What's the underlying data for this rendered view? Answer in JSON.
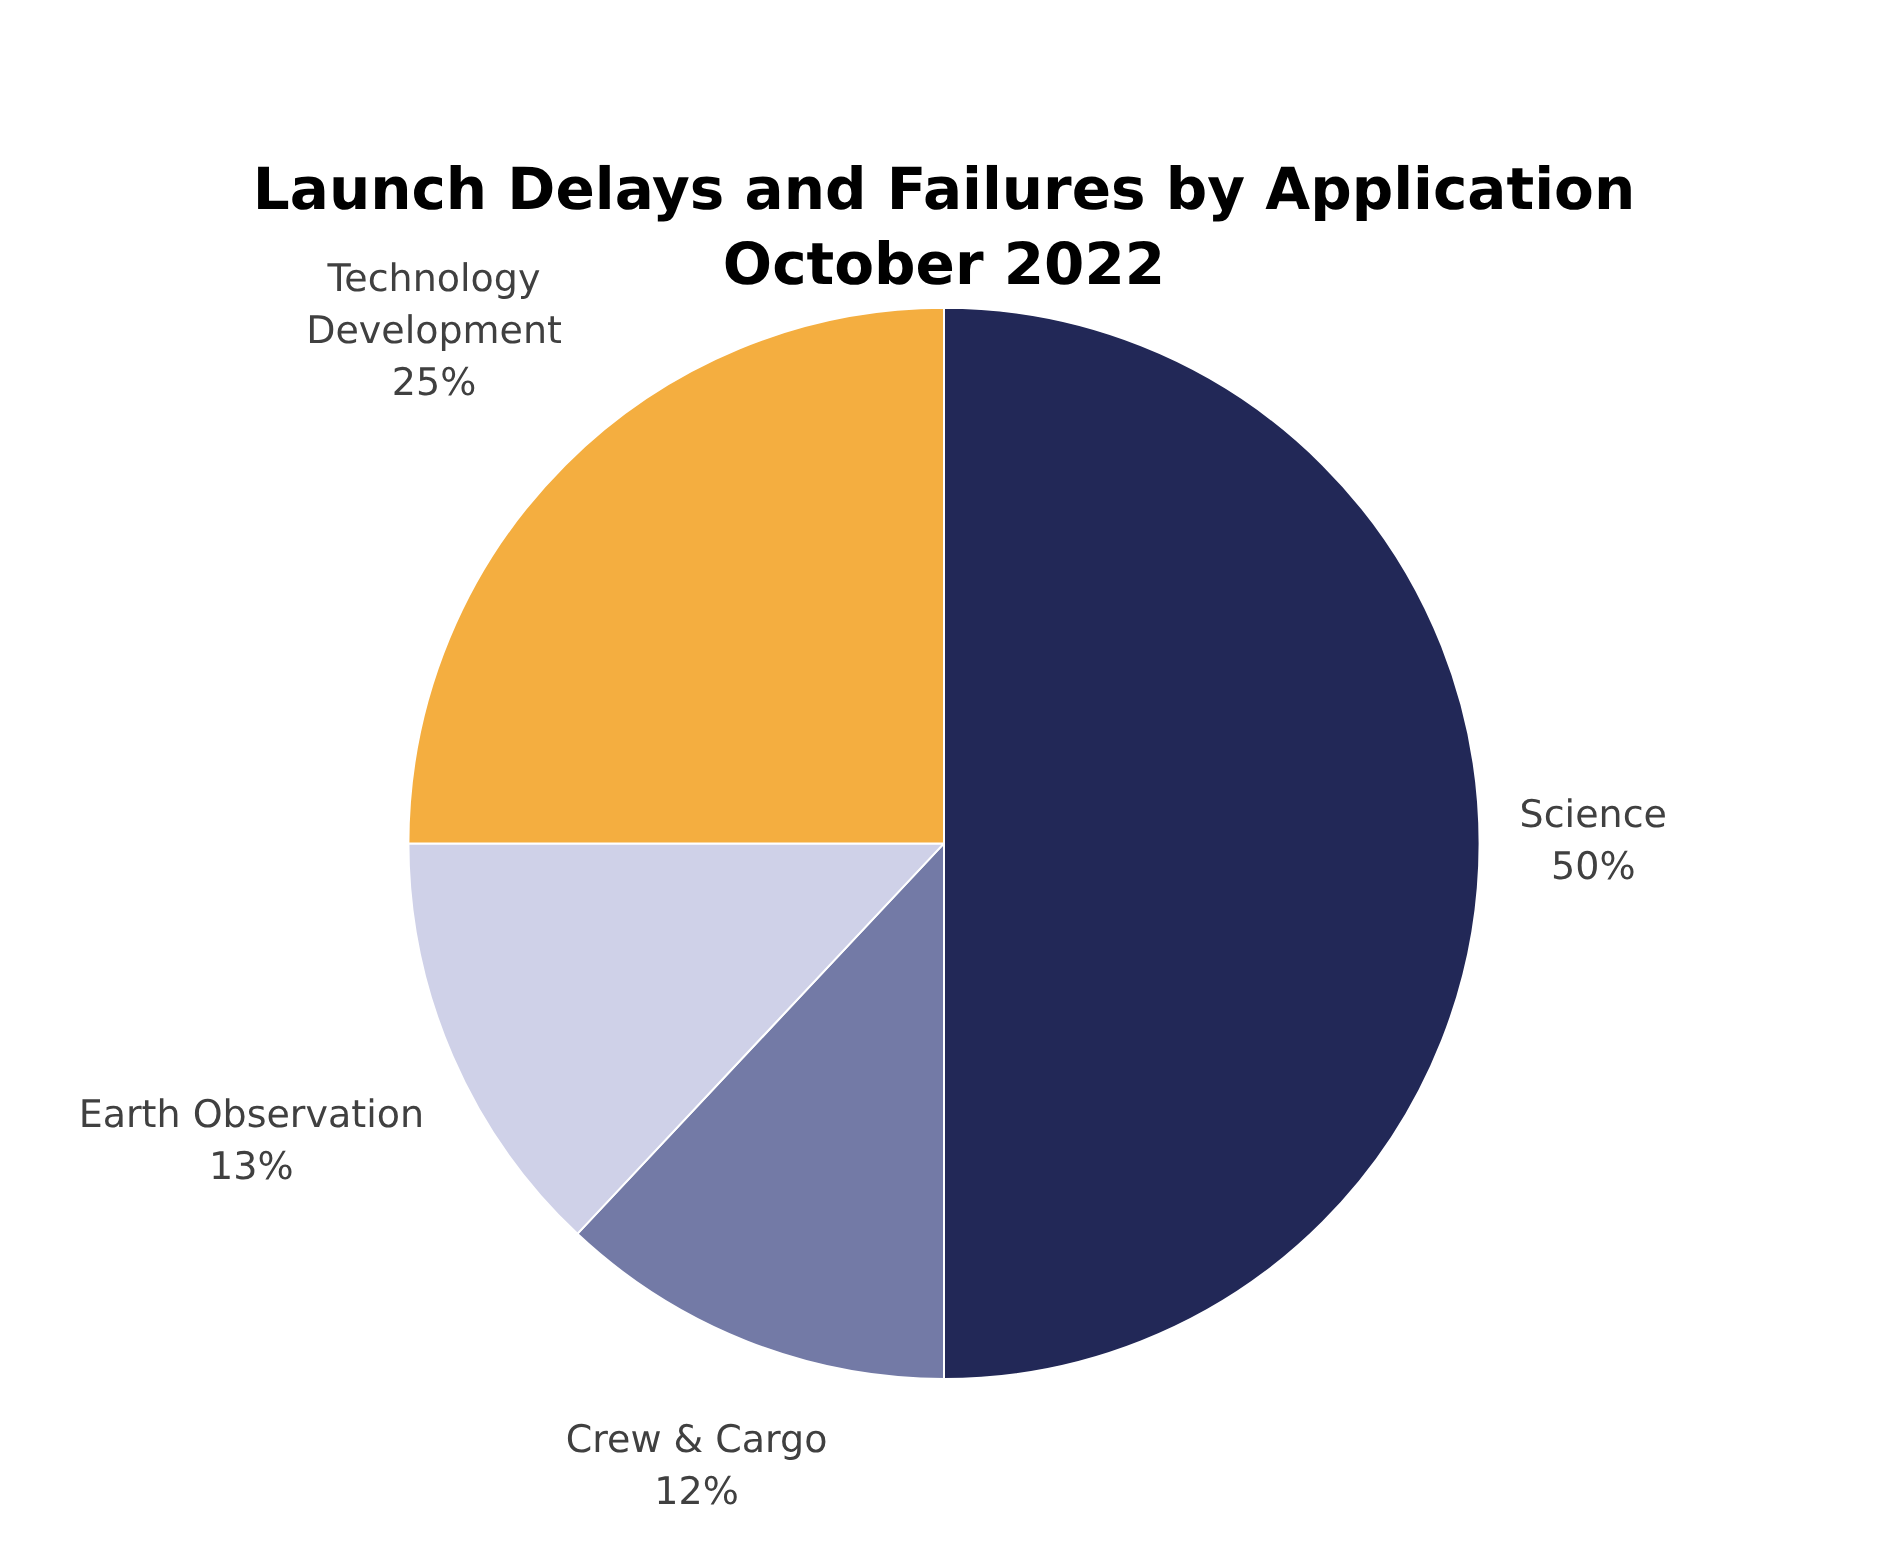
{
  "chart_data": {
    "type": "pie",
    "title": "Launch Delays and Failures by Application",
    "subtitle": "October 2022",
    "categories": [
      "Science",
      "Crew & Cargo",
      "Earth Observation",
      "Technology Development"
    ],
    "values": [
      50,
      12,
      13,
      25
    ],
    "value_labels": [
      "50%",
      "12%",
      "13%",
      "25%"
    ],
    "colors": [
      "#222857",
      "#737aa6",
      "#cfd1e8",
      "#f4ae40"
    ],
    "legend": false
  }
}
